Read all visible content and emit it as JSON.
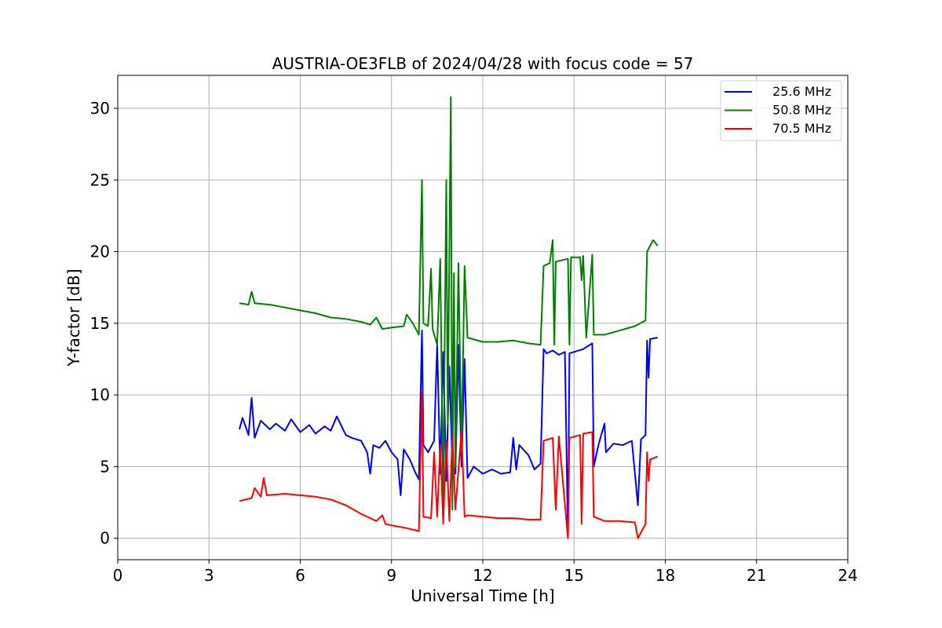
{
  "chart_data": {
    "type": "line",
    "title": "AUSTRIA-OE3FLB of 2024/04/28 with focus code = 57",
    "xlabel": "Universal Time [h]",
    "ylabel": "Y-factor [dB]",
    "xlim": [
      0,
      24
    ],
    "ylim": [
      -1.5,
      32.3
    ],
    "xticks": [
      0,
      3,
      6,
      9,
      12,
      15,
      18,
      21,
      24
    ],
    "yticks": [
      0,
      5,
      10,
      15,
      20,
      25,
      30
    ],
    "grid": true,
    "legend_position": "top-right",
    "series": [
      {
        "name": "25.6 MHz",
        "color": "#0000ff",
        "points": [
          [
            4.0,
            7.6
          ],
          [
            4.1,
            8.4
          ],
          [
            4.3,
            7.2
          ],
          [
            4.4,
            9.8
          ],
          [
            4.5,
            7.0
          ],
          [
            4.7,
            8.2
          ],
          [
            5.0,
            7.6
          ],
          [
            5.2,
            8.0
          ],
          [
            5.5,
            7.5
          ],
          [
            5.7,
            8.3
          ],
          [
            6.0,
            7.4
          ],
          [
            6.3,
            7.9
          ],
          [
            6.5,
            7.3
          ],
          [
            6.8,
            7.8
          ],
          [
            7.0,
            7.5
          ],
          [
            7.2,
            8.5
          ],
          [
            7.5,
            7.2
          ],
          [
            7.7,
            7.0
          ],
          [
            8.0,
            6.8
          ],
          [
            8.2,
            6.0
          ],
          [
            8.3,
            4.5
          ],
          [
            8.4,
            6.5
          ],
          [
            8.6,
            6.3
          ],
          [
            8.8,
            6.8
          ],
          [
            9.0,
            6.0
          ],
          [
            9.2,
            5.5
          ],
          [
            9.3,
            3.0
          ],
          [
            9.4,
            6.2
          ],
          [
            9.6,
            5.5
          ],
          [
            9.8,
            4.5
          ],
          [
            9.9,
            4.1
          ],
          [
            10.0,
            14.5
          ],
          [
            10.05,
            6.5
          ],
          [
            10.2,
            6.0
          ],
          [
            10.4,
            6.8
          ],
          [
            10.5,
            13.5
          ],
          [
            10.6,
            4.5
          ],
          [
            10.7,
            13.0
          ],
          [
            10.8,
            4.0
          ],
          [
            10.9,
            12.0
          ],
          [
            11.0,
            5.0
          ],
          [
            11.1,
            4.5
          ],
          [
            11.2,
            13.5
          ],
          [
            11.3,
            5.0
          ],
          [
            11.4,
            12.5
          ],
          [
            11.5,
            4.2
          ],
          [
            11.7,
            5.0
          ],
          [
            12.0,
            4.5
          ],
          [
            12.3,
            4.8
          ],
          [
            12.6,
            4.5
          ],
          [
            12.9,
            4.6
          ],
          [
            13.0,
            7.0
          ],
          [
            13.1,
            4.8
          ],
          [
            13.2,
            6.5
          ],
          [
            13.5,
            5.8
          ],
          [
            13.7,
            4.8
          ],
          [
            13.9,
            5.2
          ],
          [
            14.0,
            13.2
          ],
          [
            14.1,
            12.9
          ],
          [
            14.3,
            13.1
          ],
          [
            14.5,
            12.8
          ],
          [
            14.7,
            13.0
          ],
          [
            14.8,
            0.0
          ],
          [
            14.85,
            12.9
          ],
          [
            15.0,
            13.0
          ],
          [
            15.3,
            13.2
          ],
          [
            15.6,
            13.6
          ],
          [
            15.65,
            5.0
          ],
          [
            15.8,
            6.5
          ],
          [
            16.0,
            8.0
          ],
          [
            16.05,
            6.0
          ],
          [
            16.3,
            6.6
          ],
          [
            16.6,
            6.5
          ],
          [
            16.9,
            6.8
          ],
          [
            17.1,
            2.3
          ],
          [
            17.2,
            6.9
          ],
          [
            17.35,
            7.2
          ],
          [
            17.4,
            13.8
          ],
          [
            17.45,
            11.2
          ],
          [
            17.5,
            13.9
          ],
          [
            17.75,
            14.0
          ]
        ]
      },
      {
        "name": "50.8 MHz",
        "color": "#008000",
        "points": [
          [
            4.0,
            16.4
          ],
          [
            4.3,
            16.3
          ],
          [
            4.4,
            17.2
          ],
          [
            4.5,
            16.4
          ],
          [
            5.0,
            16.3
          ],
          [
            5.5,
            16.1
          ],
          [
            6.0,
            15.9
          ],
          [
            6.5,
            15.7
          ],
          [
            7.0,
            15.4
          ],
          [
            7.5,
            15.3
          ],
          [
            8.0,
            15.1
          ],
          [
            8.3,
            14.9
          ],
          [
            8.5,
            15.4
          ],
          [
            8.7,
            14.6
          ],
          [
            9.0,
            14.7
          ],
          [
            9.4,
            14.8
          ],
          [
            9.5,
            15.6
          ],
          [
            9.7,
            15.0
          ],
          [
            9.9,
            14.2
          ],
          [
            10.0,
            25.0
          ],
          [
            10.05,
            15.0
          ],
          [
            10.2,
            14.8
          ],
          [
            10.3,
            18.8
          ],
          [
            10.35,
            14.6
          ],
          [
            10.5,
            13.5
          ],
          [
            10.6,
            19.5
          ],
          [
            10.7,
            2.5
          ],
          [
            10.8,
            25.0
          ],
          [
            10.85,
            8.0
          ],
          [
            10.9,
            20.0
          ],
          [
            10.95,
            30.8
          ],
          [
            11.0,
            2.0
          ],
          [
            11.05,
            18.5
          ],
          [
            11.1,
            5.0
          ],
          [
            11.2,
            19.2
          ],
          [
            11.3,
            6.0
          ],
          [
            11.4,
            19.0
          ],
          [
            11.5,
            14.0
          ],
          [
            12.0,
            13.7
          ],
          [
            12.5,
            13.7
          ],
          [
            13.0,
            13.8
          ],
          [
            13.5,
            13.6
          ],
          [
            13.9,
            13.5
          ],
          [
            14.0,
            19.0
          ],
          [
            14.2,
            19.2
          ],
          [
            14.3,
            20.8
          ],
          [
            14.35,
            13.5
          ],
          [
            14.4,
            19.3
          ],
          [
            14.8,
            19.5
          ],
          [
            14.85,
            13.5
          ],
          [
            14.9,
            19.6
          ],
          [
            15.2,
            19.6
          ],
          [
            15.25,
            18.0
          ],
          [
            15.3,
            19.7
          ],
          [
            15.4,
            14.0
          ],
          [
            15.6,
            19.8
          ],
          [
            15.65,
            14.2
          ],
          [
            16.0,
            14.2
          ],
          [
            16.5,
            14.5
          ],
          [
            17.0,
            14.8
          ],
          [
            17.35,
            15.2
          ],
          [
            17.4,
            20.0
          ],
          [
            17.6,
            20.8
          ],
          [
            17.75,
            20.4
          ]
        ]
      },
      {
        "name": "70.5 MHz",
        "color": "#ff0000",
        "points": [
          [
            4.0,
            2.6
          ],
          [
            4.4,
            2.8
          ],
          [
            4.5,
            3.5
          ],
          [
            4.7,
            2.9
          ],
          [
            4.8,
            4.2
          ],
          [
            4.9,
            3.0
          ],
          [
            5.5,
            3.1
          ],
          [
            6.0,
            3.0
          ],
          [
            6.5,
            2.9
          ],
          [
            7.0,
            2.7
          ],
          [
            7.5,
            2.3
          ],
          [
            8.0,
            1.7
          ],
          [
            8.5,
            1.2
          ],
          [
            8.7,
            1.6
          ],
          [
            8.8,
            1.0
          ],
          [
            9.0,
            0.9
          ],
          [
            9.5,
            0.7
          ],
          [
            9.9,
            0.5
          ],
          [
            10.0,
            10.2
          ],
          [
            10.05,
            1.5
          ],
          [
            10.3,
            1.4
          ],
          [
            10.4,
            6.0
          ],
          [
            10.5,
            1.5
          ],
          [
            10.6,
            6.5
          ],
          [
            10.7,
            1.0
          ],
          [
            10.8,
            6.8
          ],
          [
            10.9,
            1.2
          ],
          [
            11.0,
            7.2
          ],
          [
            11.1,
            2.0
          ],
          [
            11.3,
            7.5
          ],
          [
            11.4,
            1.5
          ],
          [
            11.5,
            1.6
          ],
          [
            12.0,
            1.5
          ],
          [
            12.5,
            1.4
          ],
          [
            13.0,
            1.4
          ],
          [
            13.5,
            1.3
          ],
          [
            13.9,
            1.3
          ],
          [
            14.0,
            6.8
          ],
          [
            14.3,
            7.0
          ],
          [
            14.4,
            2.0
          ],
          [
            14.5,
            7.1
          ],
          [
            14.8,
            0.0
          ],
          [
            14.85,
            7.0
          ],
          [
            15.2,
            7.2
          ],
          [
            15.25,
            1.0
          ],
          [
            15.3,
            7.3
          ],
          [
            15.6,
            7.4
          ],
          [
            15.65,
            1.5
          ],
          [
            16.0,
            1.2
          ],
          [
            16.5,
            1.2
          ],
          [
            17.0,
            1.1
          ],
          [
            17.1,
            0.0
          ],
          [
            17.35,
            1.0
          ],
          [
            17.4,
            6.0
          ],
          [
            17.45,
            4.0
          ],
          [
            17.5,
            5.5
          ],
          [
            17.75,
            5.7
          ]
        ]
      }
    ]
  }
}
